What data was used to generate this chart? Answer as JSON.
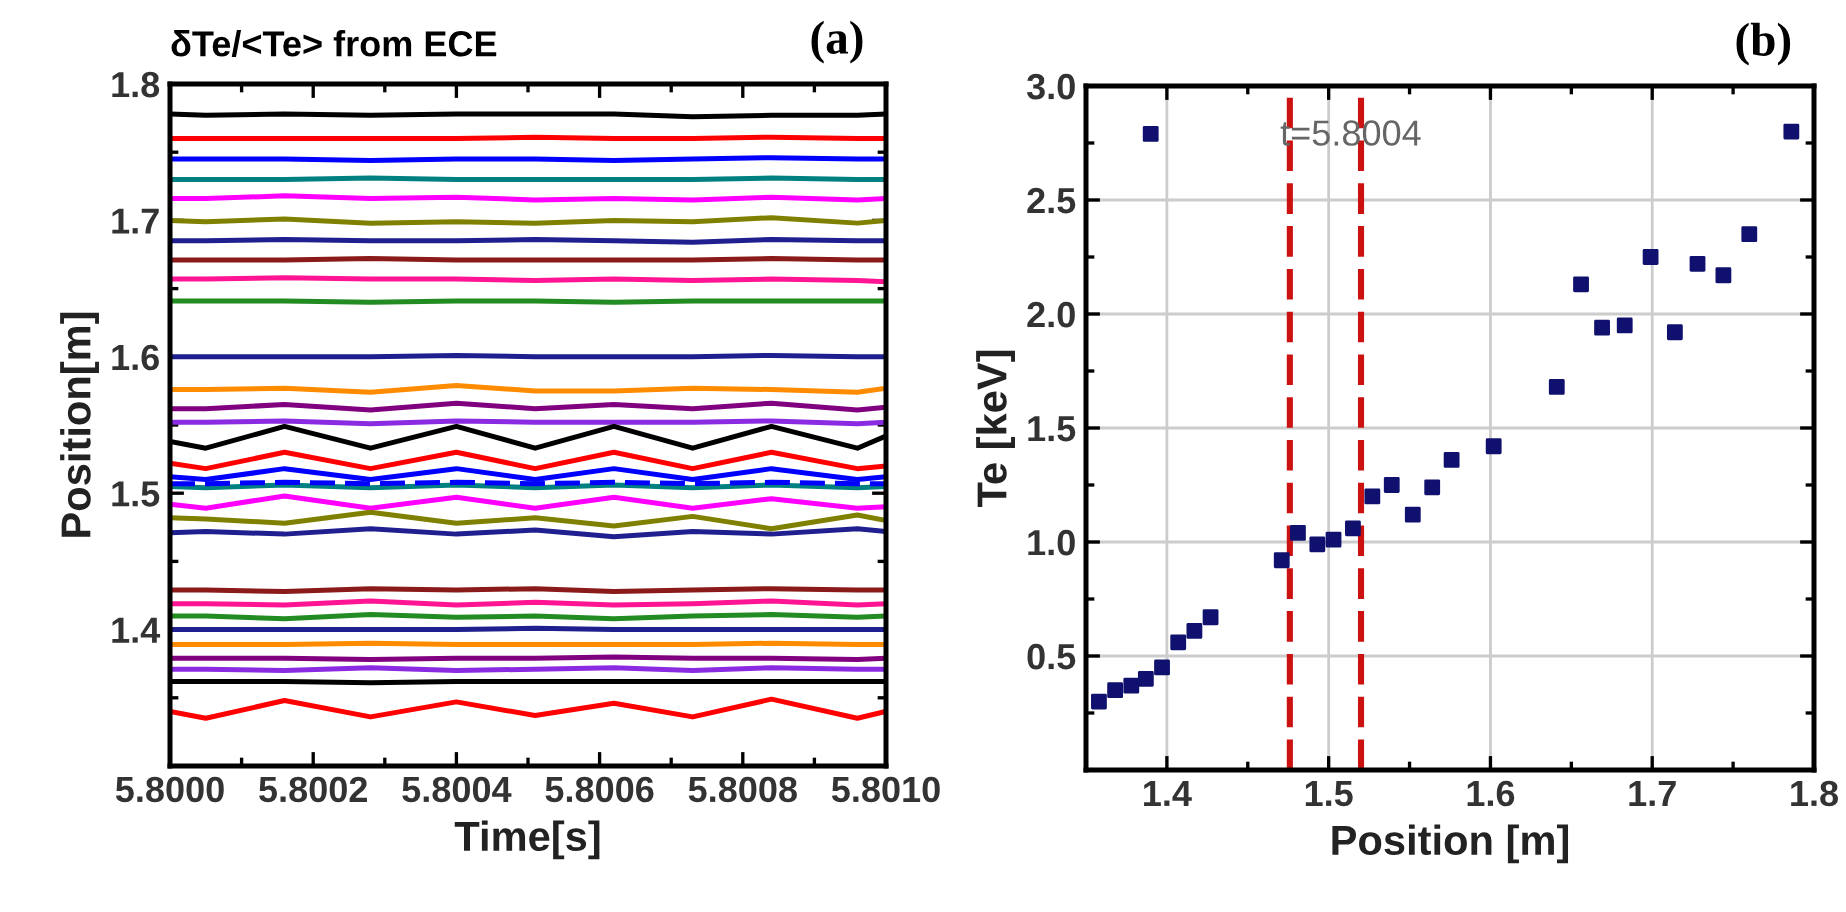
{
  "chart_data": [
    {
      "type": "line",
      "title": "δTe/<Te> from ECE",
      "xlabel": "Time[s]",
      "ylabel": "Position[m]",
      "annotations": [
        "(a)"
      ],
      "x": [
        5.8,
        5.80005,
        5.80016,
        5.80028,
        5.8004,
        5.80051,
        5.80062,
        5.80073,
        5.80084,
        5.80096,
        5.801
      ],
      "xlim": [
        5.8,
        5.801
      ],
      "xticks": [
        {
          "value": 5.8,
          "label": "5.8000"
        },
        {
          "value": 5.8001,
          "label": null
        },
        {
          "value": 5.8002,
          "label": "5.8002"
        },
        {
          "value": 5.8003,
          "label": null
        },
        {
          "value": 5.8004,
          "label": "5.8004"
        },
        {
          "value": 5.8005,
          "label": null
        },
        {
          "value": 5.8006,
          "label": "5.8006"
        },
        {
          "value": 5.8007,
          "label": null
        },
        {
          "value": 5.8008,
          "label": "5.8008"
        },
        {
          "value": 5.8009,
          "label": null
        },
        {
          "value": 5.801,
          "label": "5.8010"
        }
      ],
      "ylim": [
        1.3,
        1.8
      ],
      "yticks": [
        {
          "value": 1.35,
          "label": null
        },
        1.4,
        {
          "value": 1.45,
          "label": null
        },
        1.5,
        {
          "value": 1.55,
          "label": null
        },
        1.6,
        {
          "value": 1.65,
          "label": null
        },
        1.7,
        {
          "value": 1.75,
          "label": null
        },
        1.8
      ],
      "grid": false,
      "marker": "none",
      "line_style": "solid",
      "series": [
        {
          "color": "#000000",
          "values": [
            1.778,
            1.777,
            1.778,
            1.777,
            1.778,
            1.778,
            1.778,
            1.776,
            1.777,
            1.777,
            1.778
          ]
        },
        {
          "color": "#ff0000",
          "values": [
            1.76,
            1.76,
            1.76,
            1.76,
            1.76,
            1.761,
            1.76,
            1.76,
            1.761,
            1.76,
            1.76
          ]
        },
        {
          "color": "#0000ff",
          "values": [
            1.745,
            1.745,
            1.745,
            1.744,
            1.745,
            1.745,
            1.744,
            1.745,
            1.746,
            1.745,
            1.745
          ]
        },
        {
          "color": "#008080",
          "values": [
            1.73,
            1.73,
            1.73,
            1.731,
            1.73,
            1.73,
            1.73,
            1.73,
            1.731,
            1.73,
            1.73
          ]
        },
        {
          "color": "#ff00ff",
          "values": [
            1.716,
            1.716,
            1.718,
            1.716,
            1.717,
            1.715,
            1.716,
            1.715,
            1.717,
            1.715,
            1.716
          ]
        },
        {
          "color": "#808000",
          "values": [
            1.7,
            1.699,
            1.701,
            1.698,
            1.699,
            1.698,
            1.7,
            1.699,
            1.702,
            1.698,
            1.7
          ]
        },
        {
          "color": "#1f1f8f",
          "values": [
            1.685,
            1.685,
            1.686,
            1.685,
            1.685,
            1.686,
            1.685,
            1.684,
            1.686,
            1.685,
            1.685
          ]
        },
        {
          "color": "#8b1a1a",
          "values": [
            1.671,
            1.671,
            1.671,
            1.672,
            1.671,
            1.671,
            1.671,
            1.671,
            1.672,
            1.671,
            1.671
          ]
        },
        {
          "color": "#ff1493",
          "values": [
            1.657,
            1.657,
            1.658,
            1.657,
            1.657,
            1.656,
            1.657,
            1.656,
            1.657,
            1.656,
            1.655
          ]
        },
        {
          "color": "#228b22",
          "values": [
            1.641,
            1.641,
            1.641,
            1.64,
            1.641,
            1.641,
            1.64,
            1.641,
            1.641,
            1.641,
            1.641
          ]
        },
        {
          "color": "#1f1f8f",
          "values": [
            1.6,
            1.6,
            1.6,
            1.6,
            1.601,
            1.6,
            1.6,
            1.6,
            1.601,
            1.6,
            1.6
          ]
        },
        {
          "color": "#ff8c00",
          "values": [
            1.576,
            1.576,
            1.577,
            1.574,
            1.579,
            1.575,
            1.575,
            1.577,
            1.576,
            1.574,
            1.577
          ]
        },
        {
          "color": "#800080",
          "values": [
            1.562,
            1.562,
            1.565,
            1.561,
            1.566,
            1.562,
            1.565,
            1.562,
            1.566,
            1.561,
            1.563
          ]
        },
        {
          "color": "#8a2be2",
          "values": [
            1.552,
            1.552,
            1.553,
            1.551,
            1.553,
            1.552,
            1.552,
            1.552,
            1.553,
            1.551,
            1.552
          ]
        },
        {
          "color": "#000000",
          "values": [
            1.538,
            1.533,
            1.549,
            1.533,
            1.549,
            1.533,
            1.549,
            1.533,
            1.549,
            1.533,
            1.542
          ]
        },
        {
          "color": "#ff0000",
          "values": [
            1.522,
            1.518,
            1.53,
            1.518,
            1.53,
            1.518,
            1.53,
            1.518,
            1.53,
            1.518,
            1.52
          ]
        },
        {
          "color": "#0000ff",
          "values": [
            1.512,
            1.51,
            1.518,
            1.51,
            1.518,
            1.51,
            1.518,
            1.51,
            1.518,
            1.51,
            1.512
          ]
        },
        {
          "color": "#008080",
          "values": [
            1.505,
            1.504,
            1.506,
            1.504,
            1.506,
            1.504,
            1.506,
            1.504,
            1.506,
            1.504,
            1.505
          ]
        },
        {
          "color": "#0000ff",
          "line_style": "dashed",
          "values": [
            1.507,
            1.507,
            1.508,
            1.507,
            1.508,
            1.507,
            1.508,
            1.507,
            1.508,
            1.507,
            1.507
          ]
        },
        {
          "color": "#ff00ff",
          "values": [
            1.492,
            1.489,
            1.498,
            1.489,
            1.497,
            1.489,
            1.497,
            1.489,
            1.496,
            1.489,
            1.49
          ]
        },
        {
          "color": "#808000",
          "values": [
            1.482,
            1.481,
            1.478,
            1.486,
            1.478,
            1.482,
            1.476,
            1.483,
            1.474,
            1.484,
            1.48
          ]
        },
        {
          "color": "#1f1f8f",
          "values": [
            1.471,
            1.472,
            1.47,
            1.474,
            1.47,
            1.473,
            1.468,
            1.472,
            1.47,
            1.474,
            1.472
          ]
        },
        {
          "color": "#8b1a1a",
          "values": [
            1.429,
            1.429,
            1.428,
            1.43,
            1.429,
            1.43,
            1.428,
            1.429,
            1.43,
            1.429,
            1.429
          ]
        },
        {
          "color": "#ff1493",
          "values": [
            1.419,
            1.419,
            1.418,
            1.421,
            1.418,
            1.42,
            1.418,
            1.419,
            1.421,
            1.418,
            1.419
          ]
        },
        {
          "color": "#228b22",
          "values": [
            1.41,
            1.41,
            1.408,
            1.411,
            1.409,
            1.41,
            1.408,
            1.41,
            1.411,
            1.409,
            1.41
          ]
        },
        {
          "color": "#1f1f8f",
          "values": [
            1.4,
            1.4,
            1.4,
            1.4,
            1.4,
            1.401,
            1.4,
            1.4,
            1.4,
            1.4,
            1.4
          ]
        },
        {
          "color": "#ff8c00",
          "values": [
            1.389,
            1.389,
            1.389,
            1.39,
            1.389,
            1.389,
            1.389,
            1.389,
            1.39,
            1.389,
            1.389
          ]
        },
        {
          "color": "#800080",
          "values": [
            1.379,
            1.379,
            1.379,
            1.378,
            1.379,
            1.379,
            1.38,
            1.379,
            1.379,
            1.378,
            1.379
          ]
        },
        {
          "color": "#8a2be2",
          "values": [
            1.371,
            1.371,
            1.37,
            1.372,
            1.37,
            1.371,
            1.372,
            1.37,
            1.372,
            1.371,
            1.371
          ]
        },
        {
          "color": "#000000",
          "values": [
            1.362,
            1.362,
            1.362,
            1.361,
            1.362,
            1.362,
            1.362,
            1.362,
            1.362,
            1.362,
            1.362
          ]
        },
        {
          "color": "#ff0000",
          "values": [
            1.34,
            1.335,
            1.348,
            1.336,
            1.347,
            1.337,
            1.346,
            1.336,
            1.349,
            1.335,
            1.34
          ]
        }
      ]
    },
    {
      "type": "scatter",
      "xlabel": "Position [m]",
      "ylabel": "Te [keV]",
      "annotations": [
        "(b)",
        {
          "text": "t=5.8004",
          "x": 1.47,
          "y": 2.78
        }
      ],
      "xlim": [
        1.35,
        1.8
      ],
      "xticks": [
        1.4,
        {
          "value": 1.45,
          "label": null
        },
        1.5,
        {
          "value": 1.55,
          "label": null
        },
        1.6,
        {
          "value": 1.65,
          "label": null
        },
        1.7,
        {
          "value": 1.75,
          "label": null
        },
        1.8
      ],
      "ylim": [
        0,
        3.0
      ],
      "yticks": [
        {
          "value": 0.25,
          "label": null
        },
        0.5,
        {
          "value": 0.75,
          "label": null
        },
        {
          "value": 1,
          "label": "1.0"
        },
        {
          "value": 1.25,
          "label": null
        },
        1.5,
        {
          "value": 1.75,
          "label": null
        },
        {
          "value": 2,
          "label": "2.0"
        },
        {
          "value": 2.25,
          "label": null
        },
        2.5,
        {
          "value": 2.75,
          "label": null
        },
        {
          "value": 3,
          "label": "3.0"
        }
      ],
      "grid": true,
      "marker": "square",
      "ref_lines": [
        {
          "axis": "x",
          "value": 1.476,
          "color": "#cc1111",
          "line_style": "dashed"
        },
        {
          "axis": "x",
          "value": 1.52,
          "color": "#cc1111",
          "line_style": "dashed"
        }
      ],
      "series": [
        {
          "color": "#10106e",
          "x": [
            1.358,
            1.368,
            1.378,
            1.387,
            1.39,
            1.397,
            1.407,
            1.417,
            1.427,
            1.471,
            1.481,
            1.493,
            1.503,
            1.515,
            1.527,
            1.539,
            1.552,
            1.564,
            1.576,
            1.602,
            1.641,
            1.656,
            1.669,
            1.683,
            1.699,
            1.714,
            1.728,
            1.744,
            1.76,
            1.786
          ],
          "values": [
            0.3,
            0.35,
            0.37,
            0.4,
            2.79,
            0.45,
            0.56,
            0.61,
            0.67,
            0.92,
            1.04,
            0.99,
            1.01,
            1.06,
            1.2,
            1.25,
            1.12,
            1.24,
            1.36,
            1.42,
            1.68,
            2.13,
            1.94,
            1.95,
            2.25,
            1.92,
            2.22,
            2.17,
            2.35,
            2.8
          ]
        }
      ]
    }
  ]
}
